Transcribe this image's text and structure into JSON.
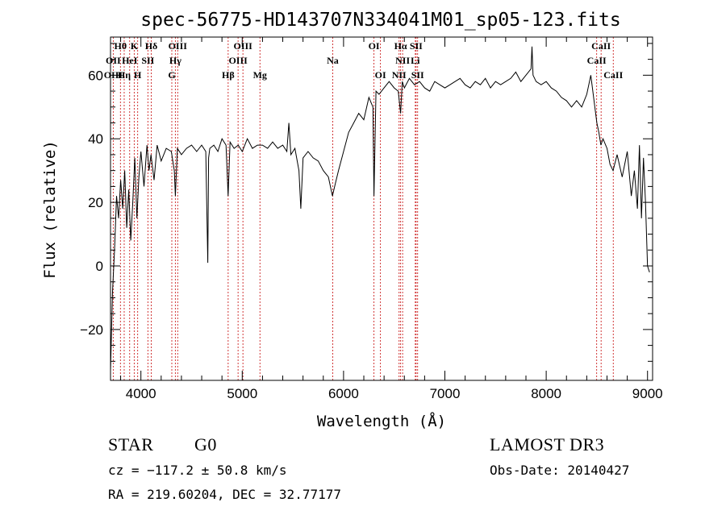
{
  "chart_data": {
    "type": "line",
    "title": "spec-56775-HD143707N334041M01_sp05-123.fits",
    "xlabel": "Wavelength (Å)",
    "ylabel": "Flux (relative)",
    "xlim": [
      3700,
      9050
    ],
    "ylim": [
      -36,
      72
    ],
    "xticks": [
      4000,
      5000,
      6000,
      7000,
      8000,
      9000
    ],
    "yticks": [
      -20,
      0,
      20,
      40,
      60
    ],
    "grid": false,
    "legend": "none",
    "series": [
      {
        "color": "#000000",
        "x": [
          3700,
          3720,
          3740,
          3760,
          3780,
          3800,
          3820,
          3840,
          3860,
          3880,
          3900,
          3920,
          3940,
          3960,
          3980,
          4000,
          4030,
          4060,
          4080,
          4100,
          4130,
          4160,
          4200,
          4250,
          4300,
          4330,
          4340,
          4360,
          4400,
          4450,
          4500,
          4550,
          4600,
          4640,
          4660,
          4668,
          4680,
          4720,
          4760,
          4800,
          4840,
          4861,
          4880,
          4920,
          4960,
          5000,
          5050,
          5100,
          5150,
          5200,
          5250,
          5300,
          5350,
          5400,
          5440,
          5460,
          5480,
          5520,
          5560,
          5578,
          5600,
          5650,
          5700,
          5750,
          5800,
          5850,
          5890,
          5920,
          5950,
          6000,
          6050,
          6100,
          6150,
          6200,
          6250,
          6290,
          6300,
          6320,
          6350,
          6400,
          6450,
          6500,
          6540,
          6563,
          6580,
          6600,
          6650,
          6700,
          6750,
          6800,
          6850,
          6900,
          6950,
          7000,
          7050,
          7100,
          7150,
          7200,
          7250,
          7300,
          7350,
          7400,
          7450,
          7500,
          7550,
          7600,
          7650,
          7700,
          7750,
          7800,
          7850,
          7860,
          7870,
          7900,
          7950,
          8000,
          8050,
          8100,
          8150,
          8200,
          8250,
          8300,
          8350,
          8400,
          8440,
          8460,
          8480,
          8500,
          8520,
          8540,
          8560,
          8600,
          8630,
          8660,
          8700,
          8750,
          8800,
          8840,
          8870,
          8900,
          8920,
          8940,
          8960,
          8980,
          9000,
          9020
        ],
        "y": [
          -33,
          -8,
          5,
          22,
          15,
          27,
          18,
          30,
          12,
          24,
          8,
          20,
          34,
          15,
          28,
          36,
          25,
          38,
          30,
          35,
          27,
          38,
          33,
          37,
          36,
          30,
          22,
          37,
          35,
          37,
          38,
          36,
          38,
          36,
          1,
          34,
          37,
          38,
          36,
          40,
          38,
          22,
          39,
          37,
          38,
          36,
          40,
          37,
          38,
          38,
          37,
          39,
          37,
          38,
          36,
          45,
          35,
          37,
          30,
          18,
          34,
          36,
          34,
          33,
          30,
          28,
          22,
          26,
          30,
          36,
          42,
          45,
          48,
          46,
          53,
          50,
          22,
          55,
          54,
          56,
          58,
          56,
          55,
          48,
          58,
          56,
          59,
          57,
          58,
          56,
          55,
          58,
          57,
          56,
          57,
          58,
          59,
          57,
          56,
          58,
          57,
          59,
          56,
          58,
          57,
          58,
          59,
          61,
          58,
          60,
          62,
          69,
          60,
          58,
          57,
          58,
          56,
          55,
          53,
          52,
          50,
          52,
          50,
          54,
          60,
          55,
          50,
          45,
          42,
          38,
          40,
          37,
          32,
          30,
          35,
          28,
          36,
          22,
          30,
          18,
          38,
          15,
          34,
          20,
          0,
          -2
        ],
        "label_gap_note": null
      }
    ],
    "annotations": [
      {
        "label": "Hθ",
        "x": 3798,
        "row": 1
      },
      {
        "label": "OII",
        "x": 3727,
        "row": 2
      },
      {
        "label": "OIII",
        "x": 3727,
        "row": 3
      },
      {
        "label": "K",
        "x": 3934,
        "row": 1
      },
      {
        "label": "HeI",
        "x": 3889,
        "row": 2
      },
      {
        "label": "Hη",
        "x": 3835,
        "row": 3
      },
      {
        "label": "H",
        "x": 3968,
        "row": 3
      },
      {
        "label": "Hδ",
        "x": 4102,
        "row": 1
      },
      {
        "label": "SII",
        "x": 4069,
        "row": 2
      },
      {
        "label": "OIII",
        "x": 4363,
        "row": 1
      },
      {
        "label": "Hγ",
        "x": 4340,
        "row": 2
      },
      {
        "label": "G",
        "x": 4305,
        "row": 3
      },
      {
        "label": "OIII",
        "x": 5007,
        "row": 1
      },
      {
        "label": "OIII",
        "x": 4959,
        "row": 2
      },
      {
        "label": "Hβ",
        "x": 4861,
        "row": 3
      },
      {
        "label": "Mg",
        "x": 5175,
        "row": 3
      },
      {
        "label": "Na",
        "x": 5893,
        "row": 2
      },
      {
        "label": "OI",
        "x": 6300,
        "row": 1
      },
      {
        "label": "OI",
        "x": 6364,
        "row": 3
      },
      {
        "label": "Hα",
        "x": 6563,
        "row": 1
      },
      {
        "label": "SII",
        "x": 6716,
        "row": 1
      },
      {
        "label": "NII",
        "x": 6583,
        "row": 2
      },
      {
        "label": "Li",
        "x": 6708,
        "row": 2
      },
      {
        "label": "NII",
        "x": 6548,
        "row": 3
      },
      {
        "label": "SII",
        "x": 6731,
        "row": 3
      },
      {
        "label": "CaII",
        "x": 8542,
        "row": 1
      },
      {
        "label": "CaII",
        "x": 8498,
        "row": 2
      },
      {
        "label": "CaII",
        "x": 8662,
        "row": 3
      }
    ]
  },
  "info": {
    "class": "STAR",
    "subclass": "G0",
    "survey": "LAMOST DR3",
    "cz": "cz = −117.2 ± 50.8 km/s",
    "obs_date": "Obs-Date: 20140427",
    "coords": "RA = 219.60204, DEC =  32.77177"
  }
}
